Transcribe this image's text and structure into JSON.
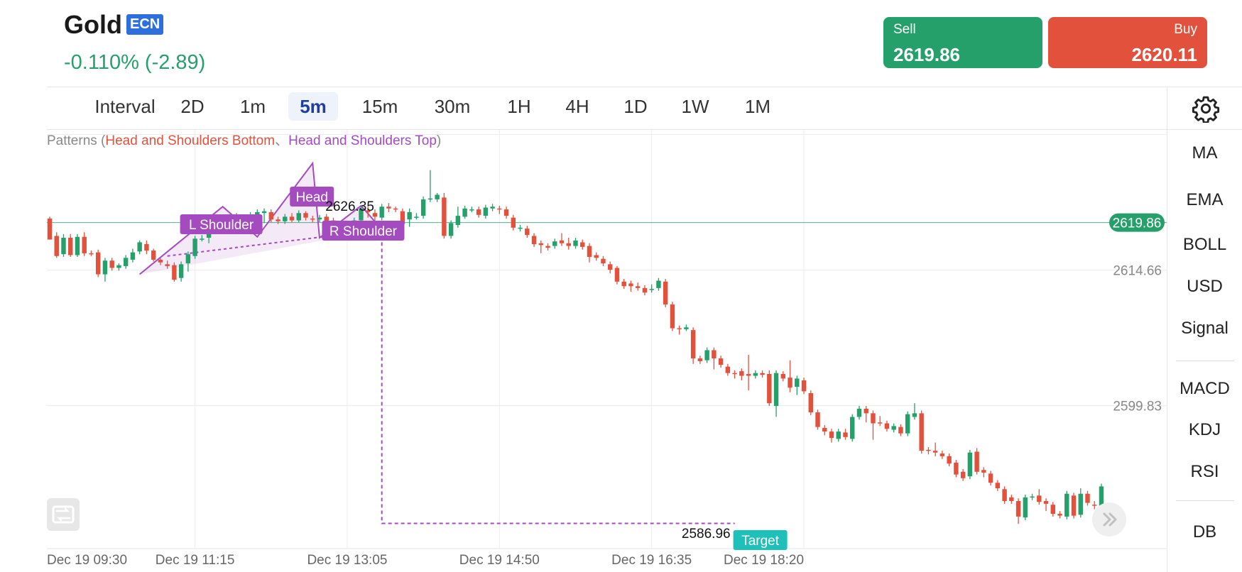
{
  "header": {
    "symbol": "Gold",
    "badge": "ECN",
    "change": "-0.110% (-2.89)",
    "sell_label": "Sell",
    "sell_price": "2619.86",
    "buy_label": "Buy",
    "buy_price": "2620.11"
  },
  "intervals": [
    "Interval",
    "2D",
    "1m",
    "5m",
    "15m",
    "30m",
    "1H",
    "4H",
    "1D",
    "1W",
    "1M"
  ],
  "active_interval": "5m",
  "indicators": [
    "MA",
    "EMA",
    "BOLL",
    "USD",
    "Signal"
  ],
  "sub_indicators": [
    "MACD",
    "KDJ",
    "RSI"
  ],
  "extra_indicator": "DB",
  "icons": {
    "settings": "gear-icon",
    "reset": "rotate-icon",
    "scroll": "chevron-double-right-icon"
  },
  "colors": {
    "up": "#26a06a",
    "down": "#e2513c",
    "pattern": "#a34bbf",
    "target": "#1fc0b9",
    "active_interval": "#1f3f9a"
  },
  "patterns": {
    "prefix": "Patterns (",
    "bottom": "Head and Shoulders Bottom",
    "separator": "、",
    "top": "Head and Shoulders Top",
    "suffix": ")"
  },
  "chart_data": {
    "type": "candlestick",
    "x_labels": [
      "Dec 19 09:30",
      "Dec 19 11:15",
      "Dec 19 13:05",
      "Dec 19 14:50",
      "Dec 19 16:35",
      "Dec 19 18:20"
    ],
    "y_labels": [
      2614.66,
      2599.83
    ],
    "ylim": [
      2584.2,
      2630.0
    ],
    "current_price": 2619.86,
    "grid": true,
    "annotations": {
      "left_shoulder": "L Shoulder",
      "head": "Head",
      "head_price": "2626.35",
      "right_shoulder": "R Shoulder",
      "target": "Target",
      "target_price": "2586.96"
    },
    "candles": [
      [
        2620.3,
        2618.0,
        2618.4,
        2620.5
      ],
      [
        2618.4,
        2616.2,
        2618.8,
        2616.0
      ],
      [
        2616.4,
        2618.2,
        2618.6,
        2616.1
      ],
      [
        2618.2,
        2616.3,
        2618.6,
        2616.1
      ],
      [
        2616.3,
        2618.3,
        2618.6,
        2616.1
      ],
      [
        2618.3,
        2616.5,
        2618.8,
        2616.2
      ],
      [
        2616.5,
        2616.4,
        2616.8,
        2616.2
      ],
      [
        2616.6,
        2614.2,
        2616.9,
        2613.9
      ],
      [
        2614.2,
        2615.7,
        2616.0,
        2613.4
      ],
      [
        2615.7,
        2614.9,
        2616.0,
        2614.6
      ],
      [
        2614.9,
        2615.2,
        2615.4,
        2614.6
      ],
      [
        2615.1,
        2616.0,
        2616.3,
        2614.8
      ],
      [
        2615.8,
        2616.6,
        2617.0,
        2615.5
      ],
      [
        2616.7,
        2617.7,
        2617.9,
        2616.4
      ],
      [
        2617.5,
        2616.8,
        2617.9,
        2616.4
      ],
      [
        2616.8,
        2615.8,
        2617.0,
        2615.6
      ],
      [
        2615.8,
        2615.5,
        2616.0,
        2615.2
      ],
      [
        2615.3,
        2615.1,
        2615.7,
        2614.8
      ],
      [
        2615.2,
        2613.6,
        2615.5,
        2613.4
      ],
      [
        2613.8,
        2615.3,
        2615.6,
        2613.4
      ],
      [
        2615.4,
        2616.4,
        2616.7,
        2614.5
      ],
      [
        2616.2,
        2618.1,
        2618.4,
        2615.9
      ],
      [
        2618.1,
        2618.1,
        2618.5,
        2617.8
      ],
      [
        2618.2,
        2619.3,
        2619.6,
        2617.6
      ],
      [
        2619.6,
        2620.1,
        2620.4,
        2619.2
      ],
      [
        2620.0,
        2619.8,
        2620.4,
        2619.6
      ],
      [
        2619.8,
        2620.3,
        2620.6,
        2619.5
      ],
      [
        2620.2,
        2620.1,
        2620.9,
        2619.7
      ],
      [
        2620.2,
        2619.8,
        2620.6,
        2619.4
      ],
      [
        2619.5,
        2620.7,
        2621.0,
        2619.2
      ],
      [
        2620.5,
        2621.0,
        2621.3,
        2620.1
      ],
      [
        2620.9,
        2621.1,
        2621.4,
        2619.8
      ],
      [
        2621.0,
        2620.2,
        2621.3,
        2619.9
      ],
      [
        2620.2,
        2620.0,
        2620.5,
        2619.7
      ],
      [
        2620.0,
        2620.5,
        2620.8,
        2619.7
      ],
      [
        2620.5,
        2620.1,
        2620.9,
        2619.9
      ],
      [
        2620.1,
        2620.9,
        2621.2,
        2619.9
      ],
      [
        2620.9,
        2620.4,
        2621.1,
        2620.1
      ],
      [
        2620.3,
        2620.2,
        2620.6,
        2619.9
      ],
      [
        2620.2,
        2620.4,
        2620.7,
        2619.9
      ],
      [
        2620.5,
        2620.0,
        2620.8,
        2619.8
      ],
      [
        2620.1,
        2619.6,
        2620.4,
        2619.3
      ],
      [
        2619.6,
        2618.2,
        2619.9,
        2617.9
      ],
      [
        2618.5,
        2618.2,
        2618.8,
        2617.9
      ],
      [
        2618.4,
        2620.1,
        2620.4,
        2618.1
      ],
      [
        2620.1,
        2621.4,
        2621.6,
        2619.8
      ],
      [
        2621.2,
        2621.0,
        2621.6,
        2620.4
      ],
      [
        2620.9,
        2620.5,
        2621.3,
        2619.6
      ],
      [
        2620.4,
        2621.6,
        2621.9,
        2620.1
      ],
      [
        2621.6,
        2621.4,
        2622.0,
        2621.0
      ],
      [
        2621.4,
        2621.3,
        2621.6,
        2621.0
      ],
      [
        2621.1,
        2619.7,
        2621.4,
        2619.4
      ],
      [
        2620.2,
        2621.0,
        2621.4,
        2619.4
      ],
      [
        2620.5,
        2620.5,
        2620.9,
        2620.2
      ],
      [
        2620.6,
        2622.4,
        2622.7,
        2620.3
      ],
      [
        2622.4,
        2622.5,
        2625.6,
        2622.1
      ],
      [
        2622.4,
        2622.9,
        2623.1,
        2622.1
      ],
      [
        2622.6,
        2618.4,
        2623.1,
        2618.1
      ],
      [
        2618.4,
        2619.8,
        2620.1,
        2618.1
      ],
      [
        2619.6,
        2620.6,
        2621.6,
        2619.3
      ],
      [
        2620.5,
        2621.4,
        2621.7,
        2620.3
      ],
      [
        2621.3,
        2621.3,
        2621.6,
        2621.0
      ],
      [
        2621.3,
        2620.7,
        2621.6,
        2620.4
      ],
      [
        2620.6,
        2621.5,
        2621.8,
        2620.3
      ],
      [
        2621.4,
        2621.6,
        2621.9,
        2621.1
      ],
      [
        2621.4,
        2621.3,
        2621.7,
        2620.8
      ],
      [
        2621.3,
        2620.6,
        2621.6,
        2620.3
      ],
      [
        2620.4,
        2619.3,
        2620.7,
        2619.0
      ],
      [
        2619.2,
        2619.3,
        2619.6,
        2618.9
      ],
      [
        2619.2,
        2618.5,
        2619.5,
        2618.2
      ],
      [
        2618.4,
        2617.5,
        2618.7,
        2617.2
      ],
      [
        2617.6,
        2617.4,
        2617.9,
        2616.5
      ],
      [
        2617.3,
        2617.1,
        2617.6,
        2616.8
      ],
      [
        2617.3,
        2617.8,
        2618.1,
        2617.0
      ],
      [
        2617.9,
        2617.6,
        2618.7,
        2617.3
      ],
      [
        2617.6,
        2617.3,
        2618.2,
        2616.9
      ],
      [
        2617.3,
        2617.9,
        2618.2,
        2617.0
      ],
      [
        2617.7,
        2617.2,
        2618.0,
        2616.9
      ],
      [
        2617.3,
        2616.1,
        2617.6,
        2615.5
      ],
      [
        2616.3,
        2616.0,
        2616.6,
        2615.7
      ],
      [
        2615.9,
        2615.4,
        2616.2,
        2615.1
      ],
      [
        2615.3,
        2614.7,
        2615.6,
        2614.3
      ],
      [
        2614.9,
        2613.4,
        2615.1,
        2613.1
      ],
      [
        2613.4,
        2612.9,
        2613.7,
        2612.6
      ],
      [
        2613.2,
        2612.9,
        2613.5,
        2612.3
      ],
      [
        2612.9,
        2612.7,
        2613.3,
        2612.4
      ],
      [
        2612.7,
        2612.2,
        2613.0,
        2611.9
      ],
      [
        2612.5,
        2612.6,
        2613.1,
        2612.2
      ],
      [
        2612.7,
        2613.5,
        2613.8,
        2612.4
      ],
      [
        2613.4,
        2610.9,
        2613.7,
        2610.6
      ],
      [
        2610.9,
        2608.3,
        2611.2,
        2608.0
      ],
      [
        2608.3,
        2608.2,
        2608.6,
        2607.6
      ],
      [
        2608.2,
        2608.4,
        2608.7,
        2608.0
      ],
      [
        2608.1,
        2605.0,
        2608.4,
        2604.4
      ],
      [
        2605.0,
        2604.7,
        2605.3,
        2604.4
      ],
      [
        2604.8,
        2605.9,
        2606.2,
        2604.5
      ],
      [
        2605.9,
        2605.0,
        2606.2,
        2603.8
      ],
      [
        2605.0,
        2604.3,
        2605.3,
        2604.0
      ],
      [
        2604.1,
        2603.4,
        2604.4,
        2603.1
      ],
      [
        2603.4,
        2603.3,
        2603.7,
        2602.8
      ],
      [
        2603.6,
        2603.1,
        2603.9,
        2602.6
      ],
      [
        2603.3,
        2603.1,
        2605.4,
        2601.5
      ],
      [
        2603.1,
        2603.4,
        2603.7,
        2602.8
      ],
      [
        2603.4,
        2603.2,
        2603.7,
        2602.9
      ],
      [
        2603.3,
        2600.1,
        2603.7,
        2599.8
      ],
      [
        2599.8,
        2603.4,
        2603.7,
        2598.6
      ],
      [
        2603.3,
        2602.8,
        2603.6,
        2602.5
      ],
      [
        2602.9,
        2601.8,
        2604.8,
        2601.3
      ],
      [
        2601.9,
        2602.8,
        2603.1,
        2601.0
      ],
      [
        2602.6,
        2601.4,
        2602.9,
        2601.1
      ],
      [
        2601.2,
        2599.1,
        2601.5,
        2598.8
      ],
      [
        2599.1,
        2597.5,
        2599.4,
        2597.2
      ],
      [
        2597.4,
        2597.0,
        2597.7,
        2596.6
      ],
      [
        2597.0,
        2596.3,
        2597.3,
        2595.8
      ],
      [
        2596.2,
        2597.0,
        2597.3,
        2595.9
      ],
      [
        2596.9,
        2596.4,
        2597.3,
        2596.1
      ],
      [
        2596.2,
        2598.6,
        2598.9,
        2595.9
      ],
      [
        2598.6,
        2599.5,
        2599.8,
        2598.3
      ],
      [
        2599.5,
        2599.0,
        2599.8,
        2598.0
      ],
      [
        2599.0,
        2597.9,
        2599.3,
        2596.1
      ],
      [
        2598.0,
        2597.9,
        2598.7,
        2597.6
      ],
      [
        2597.9,
        2597.3,
        2598.2,
        2597.0
      ],
      [
        2597.2,
        2597.6,
        2597.9,
        2596.9
      ],
      [
        2597.5,
        2596.8,
        2597.8,
        2596.5
      ],
      [
        2596.8,
        2598.9,
        2599.2,
        2596.5
      ],
      [
        2598.6,
        2599.0,
        2600.1,
        2598.3
      ],
      [
        2599.0,
        2594.9,
        2599.3,
        2594.6
      ],
      [
        2595.0,
        2594.9,
        2595.3,
        2594.5
      ],
      [
        2594.9,
        2594.7,
        2595.8,
        2594.3
      ],
      [
        2594.6,
        2594.3,
        2594.9,
        2594.0
      ],
      [
        2594.3,
        2593.5,
        2594.6,
        2593.2
      ],
      [
        2593.6,
        2592.3,
        2593.9,
        2592.0
      ],
      [
        2592.6,
        2591.9,
        2592.9,
        2591.6
      ],
      [
        2592.1,
        2594.7,
        2595.0,
        2591.8
      ],
      [
        2594.8,
        2592.6,
        2595.2,
        2592.3
      ],
      [
        2592.8,
        2592.5,
        2593.1,
        2592.0
      ],
      [
        2592.4,
        2591.4,
        2592.7,
        2591.1
      ],
      [
        2591.4,
        2590.8,
        2591.7,
        2590.5
      ],
      [
        2590.7,
        2589.4,
        2591.0,
        2589.1
      ],
      [
        2589.8,
        2589.4,
        2590.1,
        2589.1
      ],
      [
        2589.4,
        2587.7,
        2589.7,
        2586.9
      ],
      [
        2587.6,
        2589.8,
        2590.1,
        2587.3
      ],
      [
        2589.8,
        2589.9,
        2590.2,
        2589.5
      ],
      [
        2590.0,
        2589.3,
        2590.7,
        2589.0
      ],
      [
        2589.4,
        2589.1,
        2589.7,
        2588.3
      ],
      [
        2589.0,
        2588.0,
        2589.3,
        2587.7
      ],
      [
        2588.0,
        2587.8,
        2588.3,
        2587.5
      ],
      [
        2587.7,
        2590.2,
        2590.5,
        2587.4
      ],
      [
        2590.0,
        2587.8,
        2590.3,
        2587.5
      ],
      [
        2587.9,
        2590.2,
        2590.8,
        2587.6
      ],
      [
        2590.2,
        2589.2,
        2590.5,
        2588.9
      ],
      [
        2589.0,
        2588.9,
        2589.4,
        2588.5
      ],
      [
        2588.9,
        2591.0,
        2591.3,
        2588.6
      ]
    ]
  }
}
